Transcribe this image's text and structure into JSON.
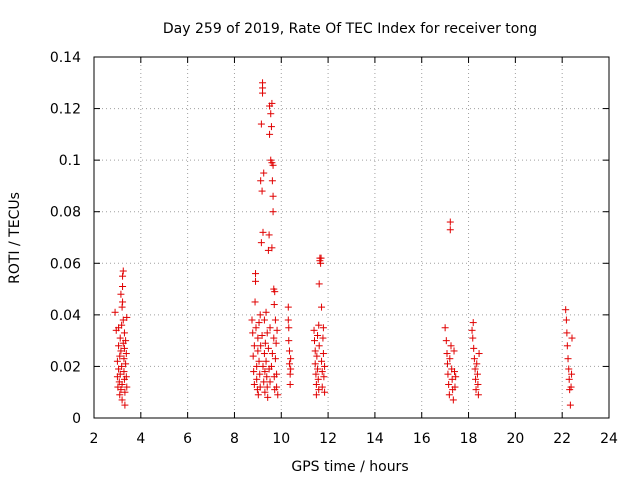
{
  "chart_data": {
    "type": "scatter",
    "title": "Day 259 of 2019, Rate Of TEC Index for receiver tong",
    "xlabel": "GPS time / hours",
    "ylabel": "ROTI / TECUs",
    "xlim": [
      2,
      24
    ],
    "ylim": [
      0,
      0.14
    ],
    "x_ticks": [
      2,
      4,
      6,
      8,
      10,
      12,
      14,
      16,
      18,
      20,
      22,
      24
    ],
    "x_tick_labels": [
      "2",
      "4",
      "6",
      "8",
      "10",
      "12",
      "14",
      "16",
      "18",
      "20",
      "22",
      "24"
    ],
    "y_ticks": [
      0,
      0.02,
      0.04,
      0.06,
      0.08,
      0.1,
      0.12,
      0.14
    ],
    "y_tick_labels": [
      "0",
      "0.02",
      "0.04",
      "0.06",
      "0.08",
      "0.1",
      "0.12",
      "0.14"
    ],
    "grid": true,
    "marker": "+",
    "color": "#e00000",
    "series": [
      {
        "name": "ROTI",
        "points": [
          [
            2.9,
            0.041
          ],
          [
            2.95,
            0.034
          ],
          [
            3.0,
            0.022
          ],
          [
            3.0,
            0.016
          ],
          [
            3.02,
            0.012
          ],
          [
            3.05,
            0.028
          ],
          [
            3.05,
            0.019
          ],
          [
            3.08,
            0.014
          ],
          [
            3.1,
            0.009
          ],
          [
            3.1,
            0.024
          ],
          [
            3.12,
            0.031
          ],
          [
            3.12,
            0.017
          ],
          [
            3.15,
            0.011
          ],
          [
            3.15,
            0.026
          ],
          [
            3.18,
            0.036
          ],
          [
            3.18,
            0.02
          ],
          [
            3.2,
            0.013
          ],
          [
            3.2,
            0.007
          ],
          [
            3.22,
            0.045
          ],
          [
            3.22,
            0.051
          ],
          [
            3.22,
            0.055
          ],
          [
            3.25,
            0.057
          ],
          [
            3.25,
            0.038
          ],
          [
            3.25,
            0.029
          ],
          [
            3.28,
            0.018
          ],
          [
            3.28,
            0.023
          ],
          [
            3.3,
            0.033
          ],
          [
            3.3,
            0.015
          ],
          [
            3.32,
            0.01
          ],
          [
            3.32,
            0.005
          ],
          [
            3.35,
            0.021
          ],
          [
            3.35,
            0.03
          ],
          [
            3.38,
            0.025
          ],
          [
            3.38,
            0.016
          ],
          [
            3.4,
            0.012
          ],
          [
            3.4,
            0.039
          ],
          [
            3.15,
            0.048
          ],
          [
            3.2,
            0.043
          ],
          [
            3.05,
            0.035
          ],
          [
            3.3,
            0.027
          ],
          [
            8.75,
            0.038
          ],
          [
            8.78,
            0.033
          ],
          [
            8.8,
            0.024
          ],
          [
            8.82,
            0.018
          ],
          [
            8.85,
            0.013
          ],
          [
            8.85,
            0.028
          ],
          [
            8.88,
            0.045
          ],
          [
            8.9,
            0.053
          ],
          [
            8.9,
            0.056
          ],
          [
            8.92,
            0.035
          ],
          [
            8.95,
            0.02
          ],
          [
            8.95,
            0.015
          ],
          [
            8.98,
            0.011
          ],
          [
            9.0,
            0.026
          ],
          [
            9.0,
            0.031
          ],
          [
            9.02,
            0.009
          ],
          [
            9.05,
            0.022
          ],
          [
            9.05,
            0.037
          ],
          [
            9.08,
            0.017
          ],
          [
            9.1,
            0.012
          ],
          [
            9.1,
            0.04
          ],
          [
            9.12,
            0.028
          ],
          [
            9.12,
            0.092
          ],
          [
            9.15,
            0.114
          ],
          [
            9.15,
            0.068
          ],
          [
            9.18,
            0.088
          ],
          [
            9.18,
            0.032
          ],
          [
            9.2,
            0.126
          ],
          [
            9.2,
            0.128
          ],
          [
            9.2,
            0.13
          ],
          [
            9.22,
            0.072
          ],
          [
            9.22,
            0.02
          ],
          [
            9.25,
            0.014
          ],
          [
            9.25,
            0.095
          ],
          [
            9.28,
            0.038
          ],
          [
            9.28,
            0.025
          ],
          [
            9.3,
            0.01
          ],
          [
            9.3,
            0.018
          ],
          [
            9.32,
            0.029
          ],
          [
            9.35,
            0.041
          ],
          [
            9.35,
            0.022
          ],
          [
            9.38,
            0.016
          ],
          [
            9.4,
            0.012
          ],
          [
            9.4,
            0.033
          ],
          [
            9.42,
            0.008
          ],
          [
            9.45,
            0.027
          ],
          [
            9.45,
            0.065
          ],
          [
            9.48,
            0.071
          ],
          [
            9.48,
            0.019
          ],
          [
            9.5,
            0.11
          ],
          [
            9.5,
            0.121
          ],
          [
            9.52,
            0.014
          ],
          [
            9.52,
            0.035
          ],
          [
            9.55,
            0.118
          ],
          [
            9.55,
            0.1
          ],
          [
            9.58,
            0.113
          ],
          [
            9.58,
            0.02
          ],
          [
            9.6,
            0.122
          ],
          [
            9.6,
            0.099
          ],
          [
            9.6,
            0.066
          ],
          [
            9.62,
            0.092
          ],
          [
            9.62,
            0.025
          ],
          [
            9.65,
            0.08
          ],
          [
            9.65,
            0.098
          ],
          [
            9.65,
            0.086
          ],
          [
            9.68,
            0.05
          ],
          [
            9.68,
            0.031
          ],
          [
            9.7,
            0.044
          ],
          [
            9.7,
            0.016
          ],
          [
            9.72,
            0.049
          ],
          [
            9.72,
            0.011
          ],
          [
            9.75,
            0.023
          ],
          [
            9.75,
            0.038
          ],
          [
            9.78,
            0.029
          ],
          [
            9.8,
            0.017
          ],
          [
            9.8,
            0.012
          ],
          [
            9.82,
            0.034
          ],
          [
            9.85,
            0.009
          ],
          [
            10.3,
            0.043
          ],
          [
            10.3,
            0.038
          ],
          [
            10.32,
            0.035
          ],
          [
            10.32,
            0.03
          ],
          [
            10.35,
            0.026
          ],
          [
            10.35,
            0.021
          ],
          [
            10.38,
            0.017
          ],
          [
            10.38,
            0.013
          ],
          [
            10.4,
            0.023
          ],
          [
            10.4,
            0.019
          ],
          [
            11.4,
            0.034
          ],
          [
            11.42,
            0.03
          ],
          [
            11.45,
            0.026
          ],
          [
            11.45,
            0.021
          ],
          [
            11.48,
            0.017
          ],
          [
            11.5,
            0.013
          ],
          [
            11.5,
            0.009
          ],
          [
            11.52,
            0.024
          ],
          [
            11.55,
            0.032
          ],
          [
            11.55,
            0.019
          ],
          [
            11.58,
            0.015
          ],
          [
            11.6,
            0.011
          ],
          [
            11.6,
            0.036
          ],
          [
            11.62,
            0.028
          ],
          [
            11.62,
            0.052
          ],
          [
            11.65,
            0.062
          ],
          [
            11.65,
            0.061
          ],
          [
            11.68,
            0.06
          ],
          [
            11.7,
            0.062
          ],
          [
            11.72,
            0.043
          ],
          [
            11.72,
            0.022
          ],
          [
            11.75,
            0.018
          ],
          [
            11.75,
            0.012
          ],
          [
            11.78,
            0.031
          ],
          [
            11.8,
            0.025
          ],
          [
            11.8,
            0.035
          ],
          [
            11.82,
            0.016
          ],
          [
            11.85,
            0.01
          ],
          [
            11.85,
            0.02
          ],
          [
            17.0,
            0.035
          ],
          [
            17.05,
            0.03
          ],
          [
            17.08,
            0.025
          ],
          [
            17.1,
            0.021
          ],
          [
            17.12,
            0.017
          ],
          [
            17.15,
            0.013
          ],
          [
            17.18,
            0.009
          ],
          [
            17.2,
            0.023
          ],
          [
            17.22,
            0.076
          ],
          [
            17.22,
            0.073
          ],
          [
            17.25,
            0.028
          ],
          [
            17.28,
            0.019
          ],
          [
            17.3,
            0.015
          ],
          [
            17.32,
            0.011
          ],
          [
            17.35,
            0.007
          ],
          [
            17.38,
            0.026
          ],
          [
            17.4,
            0.018
          ],
          [
            17.42,
            0.012
          ],
          [
            17.45,
            0.016
          ],
          [
            18.15,
            0.034
          ],
          [
            18.18,
            0.031
          ],
          [
            18.2,
            0.037
          ],
          [
            18.22,
            0.027
          ],
          [
            18.25,
            0.023
          ],
          [
            18.28,
            0.019
          ],
          [
            18.3,
            0.015
          ],
          [
            18.32,
            0.011
          ],
          [
            18.35,
            0.021
          ],
          [
            18.38,
            0.017
          ],
          [
            18.4,
            0.013
          ],
          [
            18.42,
            0.009
          ],
          [
            18.45,
            0.025
          ],
          [
            22.15,
            0.042
          ],
          [
            22.18,
            0.038
          ],
          [
            22.2,
            0.033
          ],
          [
            22.22,
            0.028
          ],
          [
            22.25,
            0.023
          ],
          [
            22.28,
            0.019
          ],
          [
            22.3,
            0.015
          ],
          [
            22.32,
            0.011
          ],
          [
            22.35,
            0.005
          ],
          [
            22.38,
            0.012
          ],
          [
            22.4,
            0.017
          ],
          [
            22.42,
            0.031
          ]
        ]
      }
    ]
  }
}
